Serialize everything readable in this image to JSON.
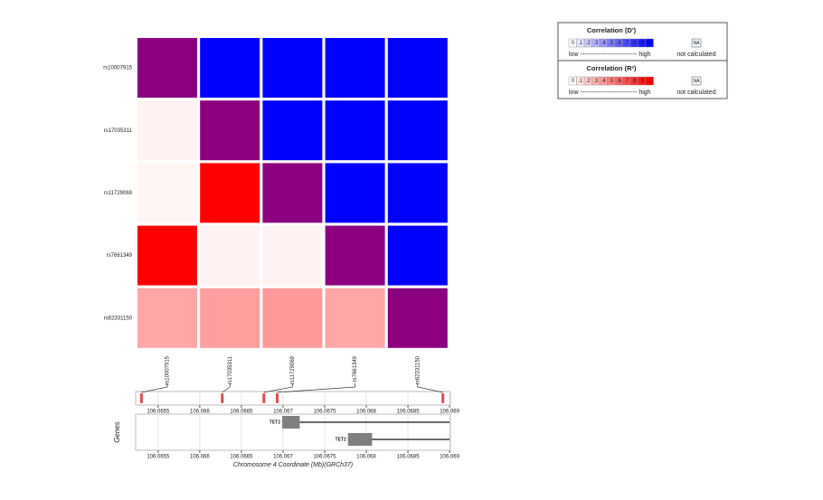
{
  "chart_data": {
    "type": "ld-heatmap",
    "snps": [
      "rs10007915",
      "rs17035311",
      "rs11729069",
      "rs7661349",
      "rs62331150"
    ],
    "positions": [
      106.0653,
      106.06627,
      106.06677,
      106.06693,
      106.06892
    ],
    "matrix": [
      [
        null,
        1,
        1,
        1,
        1
      ],
      [
        0.05,
        null,
        1,
        1,
        1
      ],
      [
        0.04,
        1,
        null,
        1,
        1
      ],
      [
        1,
        0.05,
        0.05,
        null,
        1
      ],
      [
        0.35,
        0.38,
        0.4,
        0.35,
        null
      ]
    ],
    "upper_color": "#0000ff",
    "lower_color": "#ff0000",
    "diagonal_color": "#8b007f",
    "xlim": [
      106.06523,
      106.06901
    ],
    "xticks": [
      106.0655,
      106.066,
      106.0665,
      106.067,
      106.0675,
      106.068,
      106.0685,
      106.069
    ],
    "xlabel": "Chromosome 4 Coordinate (Mb)(GRCh37)",
    "genes_label": "Genes",
    "genes": [
      {
        "name": "TET2",
        "start": 106.06699,
        "end": 106.069,
        "exon": [
          106.06699,
          106.0672
        ]
      },
      {
        "name": "TET2",
        "start": 106.06778,
        "end": 106.069,
        "exon": [
          106.06778,
          106.06807
        ]
      }
    ],
    "legends": [
      {
        "title": "Correlation  (D')",
        "color": "#0000ff"
      },
      {
        "title": "Correlation  (R²)",
        "color": "#ff0000"
      }
    ],
    "legend_steps": [
      {
        "value": 0,
        "label": "0"
      },
      {
        "value": 0.1,
        "label": ".1"
      },
      {
        "value": 0.2,
        "label": ".2"
      },
      {
        "value": 0.3,
        "label": ".3"
      },
      {
        "value": 0.4,
        "label": ".4"
      },
      {
        "value": 0.5,
        "label": ".5"
      },
      {
        "value": 0.6,
        "label": ".6"
      },
      {
        "value": 0.7,
        "label": ".7"
      },
      {
        "value": 0.8,
        "label": ".8"
      },
      {
        "value": 0.9,
        "label": ".9"
      },
      {
        "value": 1,
        "label": "1"
      }
    ],
    "legend_low_high": "low --------------------------- high",
    "na_label": "NA",
    "na_text": "not calculated"
  }
}
